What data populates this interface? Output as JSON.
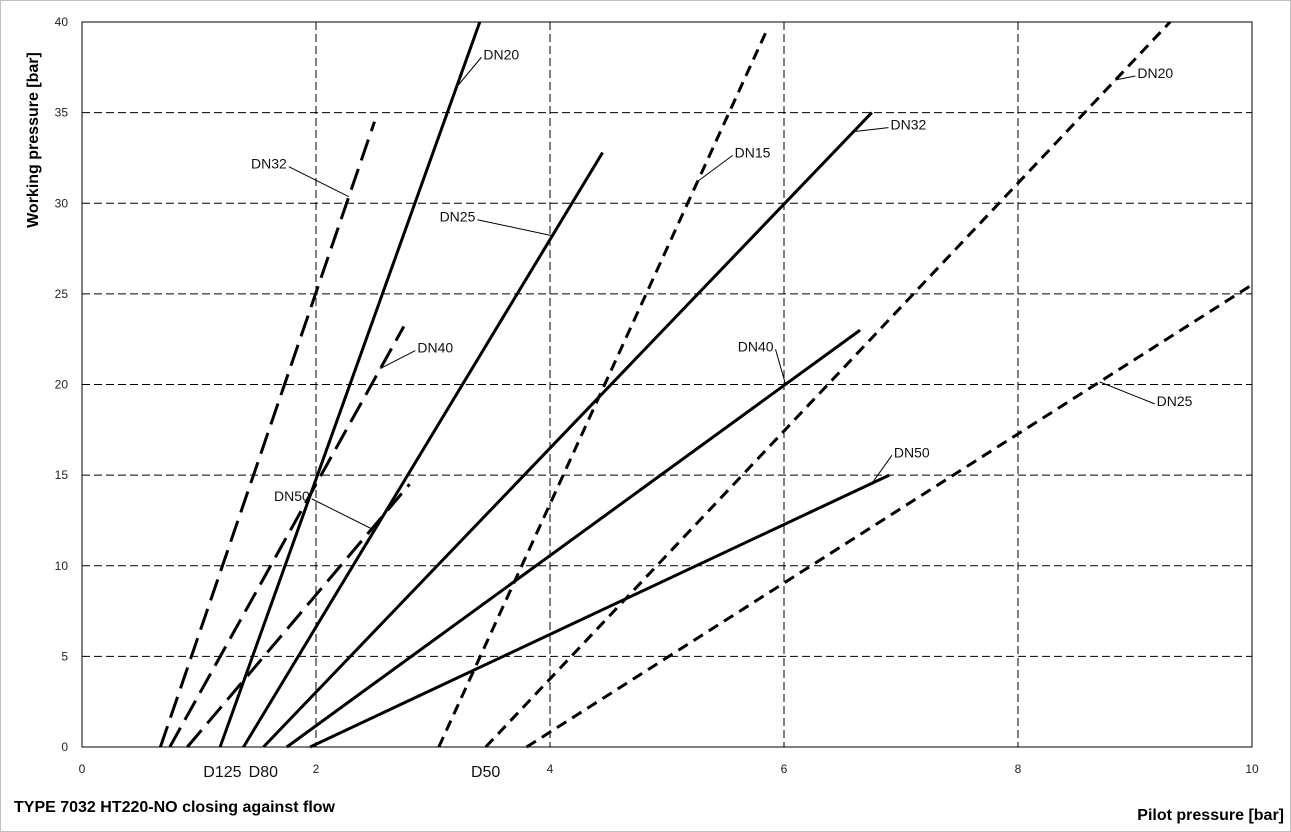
{
  "chart_data": {
    "type": "line",
    "title": "TYPE 7032 HT220-NO closing against flow",
    "xlabel": "Pilot pressure [bar]",
    "ylabel": "Working pressure [bar]",
    "xlim": [
      0,
      10
    ],
    "ylim": [
      0,
      40
    ],
    "xticks": [
      "0",
      "2",
      "4",
      "6",
      "8",
      "10"
    ],
    "yticks": [
      "0",
      "5",
      "10",
      "15",
      "20",
      "25",
      "30",
      "35",
      "40"
    ],
    "grid": true,
    "group_labels": [
      "D125",
      "D80",
      "D50"
    ],
    "series": [
      {
        "name": "DN32",
        "group": "D125",
        "dash": "long",
        "x": [
          0.67,
          2.5
        ],
        "y": [
          0,
          34.5
        ]
      },
      {
        "name": "DN40",
        "group": "D125",
        "dash": "long",
        "x": [
          0.75,
          2.75
        ],
        "y": [
          0,
          23.2
        ]
      },
      {
        "name": "DN50",
        "group": "D125",
        "dash": "long",
        "x": [
          0.9,
          2.8
        ],
        "y": [
          0,
          14.5
        ]
      },
      {
        "name": "DN20",
        "group": "D80",
        "dash": "solid",
        "x": [
          1.18,
          3.4
        ],
        "y": [
          0,
          40
        ]
      },
      {
        "name": "DN25",
        "group": "D80",
        "dash": "solid",
        "x": [
          1.38,
          4.45
        ],
        "y": [
          0,
          32.8
        ]
      },
      {
        "name": "DN32",
        "group": "D80",
        "dash": "solid",
        "x": [
          1.55,
          6.75
        ],
        "y": [
          0,
          35
        ]
      },
      {
        "name": "DN40",
        "group": "D80",
        "dash": "solid",
        "x": [
          1.75,
          6.65
        ],
        "y": [
          0,
          23
        ]
      },
      {
        "name": "DN50",
        "group": "D80",
        "dash": "solid",
        "x": [
          1.95,
          6.9
        ],
        "y": [
          0,
          15
        ]
      },
      {
        "name": "DN15",
        "group": "D50",
        "dash": "short",
        "x": [
          3.05,
          5.85
        ],
        "y": [
          0,
          39.5
        ]
      },
      {
        "name": "DN20",
        "group": "D50",
        "dash": "short",
        "x": [
          3.45,
          9.3
        ],
        "y": [
          0,
          40
        ]
      },
      {
        "name": "DN25",
        "group": "D50",
        "dash": "short",
        "x": [
          3.8,
          10
        ],
        "y": [
          0,
          25.5
        ]
      }
    ],
    "annotations": [
      {
        "text": "DN32",
        "series": 0
      },
      {
        "text": "DN40",
        "series": 1
      },
      {
        "text": "DN50",
        "series": 2
      },
      {
        "text": "DN20",
        "series": 3
      },
      {
        "text": "DN25",
        "series": 4
      },
      {
        "text": "DN32",
        "series": 5
      },
      {
        "text": "DN40",
        "series": 6
      },
      {
        "text": "DN50",
        "series": 7
      },
      {
        "text": "DN15",
        "series": 8
      },
      {
        "text": "DN20",
        "series": 9
      },
      {
        "text": "DN25",
        "series": 10
      }
    ]
  }
}
